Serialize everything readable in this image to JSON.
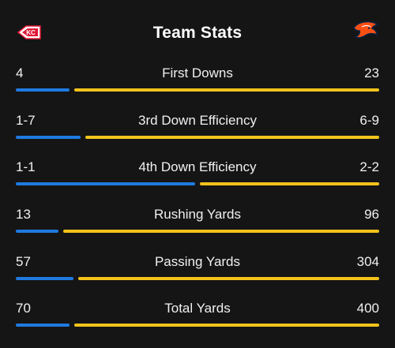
{
  "header": {
    "title": "Team Stats",
    "home_team_logo": "chiefs-arrowhead-logo",
    "away_team_logo": "broncos-horse-logo"
  },
  "colors": {
    "home_bar": "#1f7ae0",
    "away_bar": "#f2c31b",
    "background": "#151516"
  },
  "stats": [
    {
      "label": "First Downs",
      "home": "4",
      "away": "23",
      "home_share": 0.15
    },
    {
      "label": "3rd Down Efficiency",
      "home": "1-7",
      "away": "6-9",
      "home_share": 0.18
    },
    {
      "label": "4th Down Efficiency",
      "home": "1-1",
      "away": "2-2",
      "home_share": 0.5
    },
    {
      "label": "Rushing Yards",
      "home": "13",
      "away": "96",
      "home_share": 0.12
    },
    {
      "label": "Passing Yards",
      "home": "57",
      "away": "304",
      "home_share": 0.16
    },
    {
      "label": "Total Yards",
      "home": "70",
      "away": "400",
      "home_share": 0.15
    }
  ]
}
